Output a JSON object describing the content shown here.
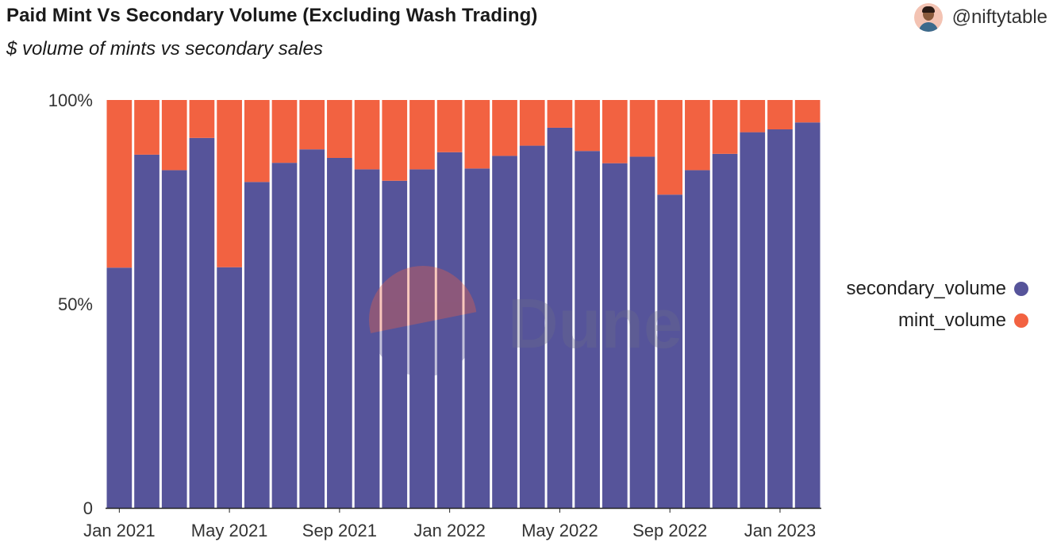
{
  "header": {
    "title": "Paid Mint Vs Secondary Volume (Excluding Wash Trading)",
    "subtitle": "$ volume of mints vs secondary sales",
    "author": "@niftytable"
  },
  "watermark": "Dune",
  "colors": {
    "secondary": "#56549a",
    "mint": "#f26241",
    "axis": "#222222",
    "watermark_orange": "#f26241",
    "watermark_purple": "#56549a"
  },
  "legend": [
    {
      "label": "secondary_volume",
      "color": "#56549a"
    },
    {
      "label": "mint_volume",
      "color": "#f26241"
    }
  ],
  "chart_data": {
    "type": "bar",
    "stacked": true,
    "normalized": true,
    "x": [
      "2021-01",
      "2021-02",
      "2021-03",
      "2021-04",
      "2021-05",
      "2021-06",
      "2021-07",
      "2021-08",
      "2021-09",
      "2021-10",
      "2021-11",
      "2021-12",
      "2022-01",
      "2022-02",
      "2022-03",
      "2022-04",
      "2022-05",
      "2022-06",
      "2022-07",
      "2022-08",
      "2022-09",
      "2022-10",
      "2022-11",
      "2022-12",
      "2023-01",
      "2023-02"
    ],
    "series": [
      {
        "name": "secondary_volume",
        "values": [
          58.9,
          86.6,
          82.8,
          90.7,
          59.0,
          79.9,
          84.6,
          87.9,
          85.8,
          83.0,
          80.2,
          83.0,
          87.2,
          83.2,
          86.3,
          88.8,
          93.2,
          87.5,
          84.5,
          86.1,
          76.8,
          82.8,
          86.8,
          92.1,
          92.8,
          94.5
        ]
      },
      {
        "name": "mint_volume",
        "values": [
          41.1,
          13.4,
          17.2,
          9.3,
          41.0,
          20.1,
          15.4,
          12.1,
          14.2,
          17.0,
          19.8,
          17.0,
          12.8,
          16.8,
          13.7,
          11.2,
          6.8,
          12.5,
          15.5,
          13.9,
          23.2,
          17.2,
          13.2,
          7.9,
          7.2,
          5.5
        ]
      }
    ],
    "ylim": [
      0,
      100
    ],
    "y_ticks": [
      {
        "value": 0,
        "label": "0"
      },
      {
        "value": 50,
        "label": "50%"
      },
      {
        "value": 100,
        "label": "100%"
      }
    ],
    "x_tick_labels": [
      {
        "index": 0,
        "label": "Jan 2021"
      },
      {
        "index": 4,
        "label": "May 2021"
      },
      {
        "index": 8,
        "label": "Sep 2021"
      },
      {
        "index": 12,
        "label": "Jan 2022"
      },
      {
        "index": 16,
        "label": "May 2022"
      },
      {
        "index": 20,
        "label": "Sep 2022"
      },
      {
        "index": 24,
        "label": "Jan 2023"
      }
    ],
    "legend_position": "right"
  }
}
